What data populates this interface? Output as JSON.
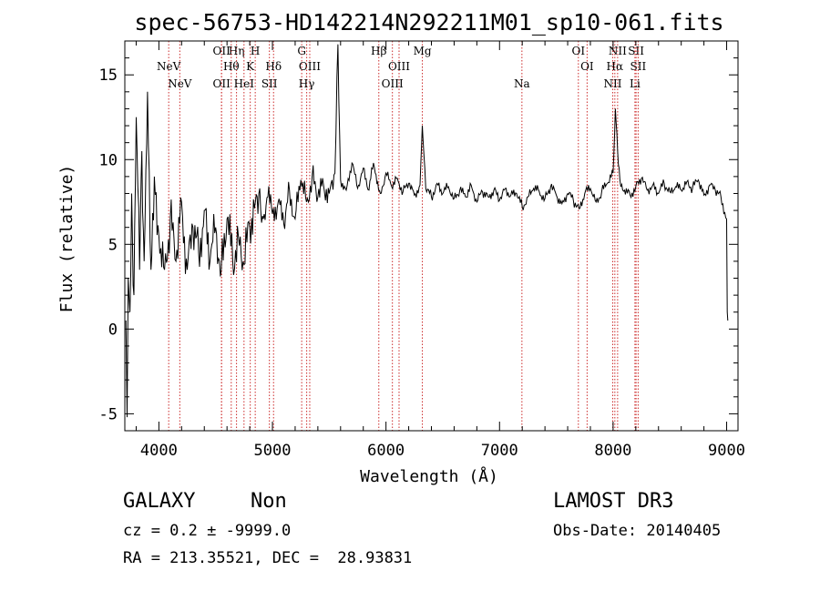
{
  "chart_data": {
    "type": "line",
    "title": "spec-56753-HD142214N292211M01_sp10-061.fits",
    "xlabel": "Wavelength (Å)",
    "ylabel": "Flux (relative)",
    "xlim": [
      3700,
      9100
    ],
    "ylim": [
      -6,
      17
    ],
    "x_ticks": [
      4000,
      5000,
      6000,
      7000,
      8000,
      9000
    ],
    "y_ticks": [
      -5,
      0,
      5,
      10,
      15
    ],
    "grid": false,
    "series": [
      {
        "color": "#000000",
        "x": [
          3710,
          3720,
          3730,
          3745,
          3760,
          3780,
          3800,
          3830,
          3850,
          3870,
          3900,
          3930,
          3960,
          4000,
          4050,
          4100,
          4150,
          4200,
          4250,
          4300,
          4350,
          4400,
          4450,
          4500,
          4550,
          4600,
          4650,
          4700,
          4750,
          4800,
          4850,
          4880,
          4920,
          4960,
          5000,
          5050,
          5100,
          5150,
          5200,
          5250,
          5300,
          5350,
          5400,
          5450,
          5500,
          5550,
          5577,
          5600,
          5650,
          5700,
          5750,
          5800,
          5850,
          5890,
          5950,
          6000,
          6050,
          6100,
          6150,
          6200,
          6250,
          6300,
          6320,
          6350,
          6400,
          6450,
          6500,
          6550,
          6600,
          6650,
          6700,
          6750,
          6800,
          6850,
          6900,
          6950,
          7000,
          7050,
          7100,
          7150,
          7200,
          7250,
          7300,
          7350,
          7400,
          7450,
          7500,
          7550,
          7600,
          7650,
          7700,
          7750,
          7800,
          7850,
          7900,
          7950,
          8000,
          8020,
          8040,
          8060,
          8100,
          8150,
          8200,
          8250,
          8300,
          8350,
          8400,
          8450,
          8500,
          8550,
          8600,
          8650,
          8700,
          8750,
          8800,
          8850,
          8900,
          8950,
          9000,
          9005,
          9010
        ],
        "y": [
          0.5,
          -5.2,
          3.0,
          1.0,
          8.0,
          2.0,
          12.5,
          3.5,
          10.5,
          4.0,
          14.0,
          3.5,
          9.0,
          5.5,
          3.5,
          6.5,
          4.0,
          7.5,
          3.5,
          6.0,
          4.5,
          7.0,
          4.0,
          6.0,
          3.5,
          6.5,
          4.0,
          5.5,
          3.8,
          6.0,
          7.5,
          8.0,
          6.5,
          7.8,
          6.8,
          7.5,
          6.2,
          8.2,
          6.5,
          8.8,
          7.5,
          9.0,
          7.8,
          8.5,
          8.0,
          9.2,
          16.8,
          8.8,
          8.2,
          9.8,
          8.3,
          9.5,
          8.2,
          9.8,
          8.0,
          9.2,
          8.4,
          8.9,
          8.1,
          8.6,
          7.9,
          8.5,
          12.0,
          8.3,
          7.8,
          8.6,
          8.0,
          8.4,
          7.7,
          8.2,
          7.8,
          8.5,
          7.5,
          8.1,
          7.8,
          8.2,
          7.6,
          8.3,
          7.9,
          8.0,
          7.2,
          7.8,
          8.3,
          8.1,
          7.7,
          8.4,
          7.9,
          7.4,
          8.0,
          7.6,
          7.1,
          8.0,
          8.3,
          7.5,
          8.1,
          8.6,
          9.2,
          13.0,
          10.5,
          8.8,
          8.2,
          7.9,
          8.4,
          8.9,
          8.2,
          8.5,
          8.0,
          8.6,
          8.1,
          8.4,
          8.2,
          8.7,
          8.3,
          8.8,
          7.9,
          8.5,
          8.2,
          7.8,
          6.5,
          1.0,
          0.5
        ]
      }
    ],
    "spectral_lines": [
      {
        "label": "NeV",
        "wl": 3426,
        "row": 2
      },
      {
        "label": "NeV",
        "wl": 3346,
        "row": 1
      },
      {
        "label": "OII",
        "wl": 3727,
        "row": 0
      },
      {
        "label": "Hη",
        "wl": 3835,
        "row": 0
      },
      {
        "label": "Hθ",
        "wl": 3797,
        "row": 1
      },
      {
        "label": "H",
        "wl": 3970,
        "row": 0
      },
      {
        "label": "K",
        "wl": 3934,
        "row": 1
      },
      {
        "label": "OII",
        "wl": 3727,
        "row": 2
      },
      {
        "label": "HeI",
        "wl": 3889,
        "row": 2
      },
      {
        "label": "Hδ",
        "wl": 4102,
        "row": 1
      },
      {
        "label": "SII",
        "wl": 4072,
        "row": 2
      },
      {
        "label": "G",
        "wl": 4305,
        "row": 0
      },
      {
        "label": "OIII",
        "wl": 4363,
        "row": 1
      },
      {
        "label": "Hγ",
        "wl": 4341,
        "row": 2
      },
      {
        "label": "Hβ",
        "wl": 4861,
        "row": 0
      },
      {
        "label": "OIII",
        "wl": 5007,
        "row": 1
      },
      {
        "label": "OIII",
        "wl": 4959,
        "row": 2
      },
      {
        "label": "Mg",
        "wl": 5175,
        "row": 0
      },
      {
        "label": "Na",
        "wl": 5893,
        "row": 2
      },
      {
        "label": "OI",
        "wl": 6300,
        "row": 0
      },
      {
        "label": "OI",
        "wl": 6363,
        "row": 1
      },
      {
        "label": "NII",
        "wl": 6583,
        "row": 0
      },
      {
        "label": "SII",
        "wl": 6716,
        "row": 0
      },
      {
        "label": "Hα",
        "wl": 6563,
        "row": 1
      },
      {
        "label": "SII",
        "wl": 6731,
        "row": 1
      },
      {
        "label": "NII",
        "wl": 6548,
        "row": 2
      },
      {
        "label": "Li",
        "wl": 6708,
        "row": 2
      }
    ],
    "redshift_factor": 1.2213
  },
  "info": {
    "class": "GALAXY",
    "subclass": "Non",
    "cz": "cz = 0.2 ± -9999.0",
    "radec": "RA = 213.35521, DEC =  28.93831",
    "survey": "LAMOST DR3",
    "obsdate": "Obs-Date: 20140405"
  }
}
